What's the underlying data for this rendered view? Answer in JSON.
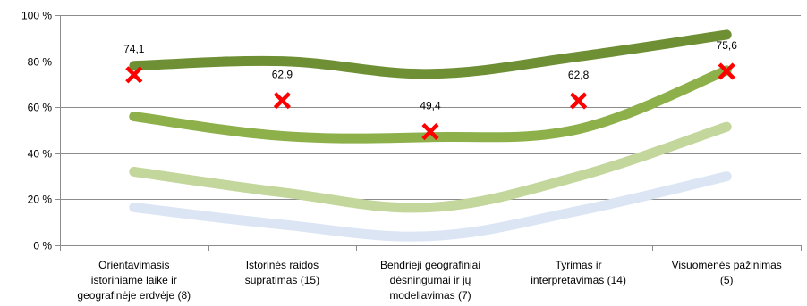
{
  "chart_data": {
    "type": "line",
    "title": "",
    "xlabel": "",
    "ylabel": "",
    "ylim": [
      0,
      100
    ],
    "grid": "horizontal",
    "yticks": [
      "0 %",
      "20 %",
      "40 %",
      "60 %",
      "80 %",
      "100 %"
    ],
    "categories": [
      [
        "Orientavimasis",
        "istoriniame laike ir",
        "geografinėje erdvėje (8)"
      ],
      [
        "Istorinės raidos",
        "supratimas (15)"
      ],
      [
        "Bendrieji geografiniai",
        "dėsningumai ir jų",
        "modeliavimas (7)"
      ],
      [
        "Tyrimas ir",
        "interpretavimas (14)"
      ],
      [
        "Visuomenės pažinimas",
        "(5)"
      ]
    ],
    "series": [
      {
        "color": "#dbe5f4",
        "values": [
          16.5,
          9,
          4,
          15,
          30
        ]
      },
      {
        "color": "#c3d69b",
        "values": [
          32,
          23,
          16.5,
          30,
          51.5
        ]
      },
      {
        "color": "#8db04a",
        "values": [
          56,
          47.5,
          47,
          50.5,
          76
        ]
      },
      {
        "color": "#6e8f34",
        "values": [
          78,
          80,
          74.5,
          82,
          91.5
        ]
      }
    ],
    "markers": {
      "color": "#ff0000",
      "shape": "x",
      "values": [
        74.1,
        62.9,
        49.4,
        62.8,
        75.6
      ],
      "labels": [
        "74,1",
        "62,9",
        "49,4",
        "62,8",
        "75,6"
      ]
    }
  }
}
